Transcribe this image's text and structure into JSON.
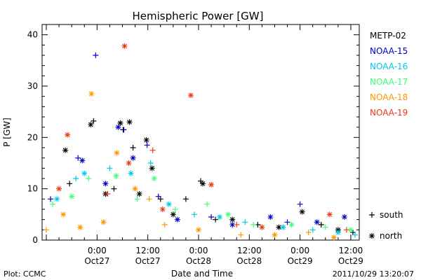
{
  "chart_data": {
    "type": "scatter",
    "title": "Hemispheric Power [GW]",
    "ylabel": "P [GW]",
    "xlabel": "Date and Time",
    "ylim": [
      0,
      42
    ],
    "yticks": [
      0,
      10,
      20,
      30,
      40
    ],
    "xlim": [
      "2011-10-26 11:00",
      "2011-10-29 14:00"
    ],
    "xticks": [
      {
        "t": "2011-10-27 00:00",
        "time": "0:00",
        "date": "Oct27"
      },
      {
        "t": "2011-10-27 12:00",
        "time": "12:00",
        "date": "Oct27"
      },
      {
        "t": "2011-10-28 00:00",
        "time": "0:00",
        "date": "Oct28"
      },
      {
        "t": "2011-10-28 12:00",
        "time": "12:00",
        "date": "Oct28"
      },
      {
        "t": "2011-10-29 00:00",
        "time": "0:00",
        "date": "Oct29"
      },
      {
        "t": "2011-10-29 12:00",
        "time": "12:00",
        "date": "Oct29"
      }
    ],
    "legend_position": "right",
    "symbols": [
      {
        "label": "south",
        "marker": "+"
      },
      {
        "label": "north",
        "marker": "*"
      }
    ],
    "series": [
      {
        "name": "METP-02",
        "color": "#000000",
        "points": [
          {
            "t": "2011-10-26 16:30",
            "y": 17.5,
            "m": "*"
          },
          {
            "t": "2011-10-26 17:30",
            "y": 11,
            "m": "+"
          },
          {
            "t": "2011-10-26 22:30",
            "y": 22.5,
            "m": "*"
          },
          {
            "t": "2011-10-26 23:10",
            "y": 23.2,
            "m": "+"
          },
          {
            "t": "2011-10-27 05:30",
            "y": 22.8,
            "m": "*"
          },
          {
            "t": "2011-10-27 06:10",
            "y": 21.5,
            "m": "+"
          },
          {
            "t": "2011-10-27 07:40",
            "y": 23,
            "m": "*"
          },
          {
            "t": "2011-10-27 08:30",
            "y": 18,
            "m": "+"
          },
          {
            "t": "2011-10-27 11:40",
            "y": 19.5,
            "m": "*"
          },
          {
            "t": "2011-10-27 13:00",
            "y": 14,
            "m": "*"
          },
          {
            "t": "2011-10-27 21:00",
            "y": 8,
            "m": "+"
          },
          {
            "t": "2011-10-28 00:30",
            "y": 11.5,
            "m": "+"
          },
          {
            "t": "2011-10-28 01:00",
            "y": 11,
            "m": "*"
          },
          {
            "t": "2011-10-29 00:30",
            "y": 5.5,
            "m": "*"
          },
          {
            "t": "2011-10-27 02:00",
            "y": 9,
            "m": "*"
          },
          {
            "t": "2011-10-27 04:00",
            "y": 10,
            "m": "+"
          },
          {
            "t": "2011-10-27 10:00",
            "y": 9,
            "m": "*"
          },
          {
            "t": "2011-10-27 15:00",
            "y": 8,
            "m": "+"
          },
          {
            "t": "2011-10-27 18:00",
            "y": 5,
            "m": "*"
          },
          {
            "t": "2011-10-28 04:00",
            "y": 4,
            "m": "+"
          },
          {
            "t": "2011-10-28 08:00",
            "y": 4,
            "m": "*"
          },
          {
            "t": "2011-10-28 14:00",
            "y": 3,
            "m": "+"
          },
          {
            "t": "2011-10-28 19:00",
            "y": 2.5,
            "m": "*"
          },
          {
            "t": "2011-10-29 05:00",
            "y": 3,
            "m": "+"
          },
          {
            "t": "2011-10-29 09:00",
            "y": 2,
            "m": "*"
          },
          {
            "t": "2011-10-29 12:30",
            "y": 1.5,
            "m": "+"
          }
        ]
      },
      {
        "name": "NOAA-15",
        "color": "#0000c8",
        "points": [
          {
            "t": "2011-10-26 23:40",
            "y": 36,
            "m": "+"
          },
          {
            "t": "2011-10-27 05:00",
            "y": 22,
            "m": "*"
          },
          {
            "t": "2011-10-27 06:20",
            "y": 21.5,
            "m": "+"
          },
          {
            "t": "2011-10-27 11:50",
            "y": 18.5,
            "m": "+"
          },
          {
            "t": "2011-10-26 19:30",
            "y": 16,
            "m": "+"
          },
          {
            "t": "2011-10-26 20:30",
            "y": 15.5,
            "m": "*"
          },
          {
            "t": "2011-10-27 08:30",
            "y": 16,
            "m": "*"
          },
          {
            "t": "2011-10-26 13:00",
            "y": 8,
            "m": "+"
          },
          {
            "t": "2011-10-27 02:00",
            "y": 11,
            "m": "*"
          },
          {
            "t": "2011-10-27 14:30",
            "y": 8.5,
            "m": "+"
          },
          {
            "t": "2011-10-27 19:00",
            "y": 4,
            "m": "*"
          },
          {
            "t": "2011-10-28 03:00",
            "y": 4.5,
            "m": "+"
          },
          {
            "t": "2011-10-28 08:00",
            "y": 3,
            "m": "*"
          },
          {
            "t": "2011-10-28 17:00",
            "y": 4.5,
            "m": "*"
          },
          {
            "t": "2011-10-28 21:00",
            "y": 3.5,
            "m": "+"
          },
          {
            "t": "2011-10-29 00:00",
            "y": 7,
            "m": "+"
          },
          {
            "t": "2011-10-29 04:00",
            "y": 3.5,
            "m": "*"
          },
          {
            "t": "2011-10-29 10:30",
            "y": 4.5,
            "m": "*"
          }
        ]
      },
      {
        "name": "NOAA-16",
        "color": "#00c8e6",
        "points": [
          {
            "t": "2011-10-26 14:30",
            "y": 8,
            "m": "*"
          },
          {
            "t": "2011-10-26 19:00",
            "y": 12,
            "m": "+"
          },
          {
            "t": "2011-10-26 21:00",
            "y": 13,
            "m": "*"
          },
          {
            "t": "2011-10-27 03:00",
            "y": 14,
            "m": "+"
          },
          {
            "t": "2011-10-27 08:00",
            "y": 13,
            "m": "*"
          },
          {
            "t": "2011-10-27 12:40",
            "y": 15,
            "m": "+"
          },
          {
            "t": "2011-10-27 17:00",
            "y": 7,
            "m": "*"
          },
          {
            "t": "2011-10-27 23:00",
            "y": 5,
            "m": "+"
          },
          {
            "t": "2011-10-28 05:00",
            "y": 4.5,
            "m": "*"
          },
          {
            "t": "2011-10-28 11:00",
            "y": 3.5,
            "m": "+"
          },
          {
            "t": "2011-10-28 20:00",
            "y": 2.5,
            "m": "*"
          },
          {
            "t": "2011-10-29 03:00",
            "y": 2,
            "m": "+"
          },
          {
            "t": "2011-10-29 09:00",
            "y": 1.5,
            "m": "*"
          },
          {
            "t": "2011-10-29 13:00",
            "y": 1,
            "m": "+"
          }
        ]
      },
      {
        "name": "NOAA-17",
        "color": "#3cff78",
        "points": [
          {
            "t": "2011-10-26 13:30",
            "y": 7,
            "m": "+"
          },
          {
            "t": "2011-10-26 18:00",
            "y": 8.5,
            "m": "*"
          },
          {
            "t": "2011-10-26 22:00",
            "y": 12,
            "m": "+"
          },
          {
            "t": "2011-10-27 04:30",
            "y": 12.5,
            "m": "*"
          },
          {
            "t": "2011-10-27 09:30",
            "y": 8,
            "m": "+"
          },
          {
            "t": "2011-10-27 13:30",
            "y": 12,
            "m": "*"
          },
          {
            "t": "2011-10-27 18:30",
            "y": 6,
            "m": "+"
          },
          {
            "t": "2011-10-28 02:00",
            "y": 7,
            "m": "+"
          },
          {
            "t": "2011-10-28 07:00",
            "y": 5,
            "m": "*"
          },
          {
            "t": "2011-10-28 13:00",
            "y": 3,
            "m": "+"
          },
          {
            "t": "2011-10-28 22:00",
            "y": 3,
            "m": "*"
          },
          {
            "t": "2011-10-29 06:00",
            "y": 2.5,
            "m": "+"
          },
          {
            "t": "2011-10-29 12:00",
            "y": 2,
            "m": "*"
          }
        ]
      },
      {
        "name": "NOAA-18",
        "color": "#ff9600",
        "points": [
          {
            "t": "2011-10-26 22:40",
            "y": 28.5,
            "m": "*"
          },
          {
            "t": "2011-10-26 12:00",
            "y": 2,
            "m": "+"
          },
          {
            "t": "2011-10-26 16:00",
            "y": 5,
            "m": "*"
          },
          {
            "t": "2011-10-26 20:00",
            "y": 2.5,
            "m": "*"
          },
          {
            "t": "2011-10-27 01:30",
            "y": 3.5,
            "m": "*"
          },
          {
            "t": "2011-10-27 04:40",
            "y": 17,
            "m": "*"
          },
          {
            "t": "2011-10-27 09:00",
            "y": 10,
            "m": "*"
          },
          {
            "t": "2011-10-27 12:20",
            "y": 8,
            "m": "+"
          },
          {
            "t": "2011-10-27 16:00",
            "y": 3,
            "m": "+"
          },
          {
            "t": "2011-10-28 00:00",
            "y": 2,
            "m": "*"
          },
          {
            "t": "2011-10-28 10:00",
            "y": 1,
            "m": "+"
          },
          {
            "t": "2011-10-28 18:00",
            "y": 1,
            "m": "*"
          },
          {
            "t": "2011-10-29 02:00",
            "y": 1.5,
            "m": "+"
          },
          {
            "t": "2011-10-29 08:00",
            "y": 0.5,
            "m": "*"
          }
        ]
      },
      {
        "name": "NOAA-19",
        "color": "#e63c14",
        "points": [
          {
            "t": "2011-10-27 06:30",
            "y": 37.8,
            "m": "*"
          },
          {
            "t": "2011-10-27 22:10",
            "y": 28.2,
            "m": "*"
          },
          {
            "t": "2011-10-26 17:00",
            "y": 20.5,
            "m": "*"
          },
          {
            "t": "2011-10-27 13:10",
            "y": 17.5,
            "m": "+"
          },
          {
            "t": "2011-10-27 07:30",
            "y": 15,
            "m": "*"
          },
          {
            "t": "2011-10-28 03:00",
            "y": 10.8,
            "m": "*"
          },
          {
            "t": "2011-10-26 15:00",
            "y": 10,
            "m": "*"
          },
          {
            "t": "2011-10-27 02:30",
            "y": 9,
            "m": "+"
          },
          {
            "t": "2011-10-27 15:30",
            "y": 6,
            "m": "*"
          },
          {
            "t": "2011-10-28 09:00",
            "y": 3,
            "m": "+"
          },
          {
            "t": "2011-10-28 15:00",
            "y": 2.5,
            "m": "*"
          },
          {
            "t": "2011-10-29 07:00",
            "y": 5,
            "m": "*"
          },
          {
            "t": "2011-10-29 11:00",
            "y": 2,
            "m": "+"
          }
        ]
      }
    ]
  },
  "footer": {
    "plot_credit": "Plot: CCMC",
    "timestamp": "2011/10/29 13:20:07"
  }
}
